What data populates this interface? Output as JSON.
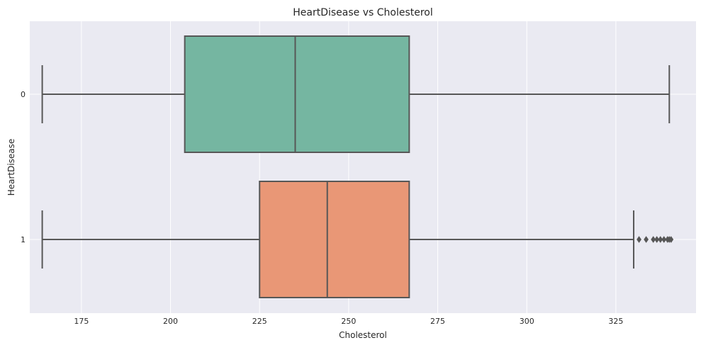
{
  "chart_data": {
    "type": "box",
    "orientation": "horizontal",
    "title": "HeartDisease vs Cholesterol",
    "xlabel": "Cholesterol",
    "ylabel": "HeartDisease",
    "xlim": [
      160.5,
      347.5
    ],
    "xticks": [
      175,
      200,
      225,
      250,
      275,
      300,
      325
    ],
    "grid": true,
    "categories": [
      "0",
      "1"
    ],
    "boxes": [
      {
        "category": "0",
        "min": 164,
        "q1": 204,
        "median": 235,
        "q3": 267,
        "max": 340,
        "outliers": [],
        "color": "#75b6a1"
      },
      {
        "category": "1",
        "min": 164,
        "q1": 225,
        "median": 244,
        "q3": 267,
        "max": 330,
        "outliers": [
          331.5,
          333.5,
          335.5,
          336.5,
          337.5,
          338.5,
          339.5,
          340,
          340.5
        ],
        "color": "#e99776"
      }
    ]
  },
  "colors": {
    "plot_background": "#eaeaf2",
    "grid": "#ffffff",
    "box_edge": "#575757"
  }
}
